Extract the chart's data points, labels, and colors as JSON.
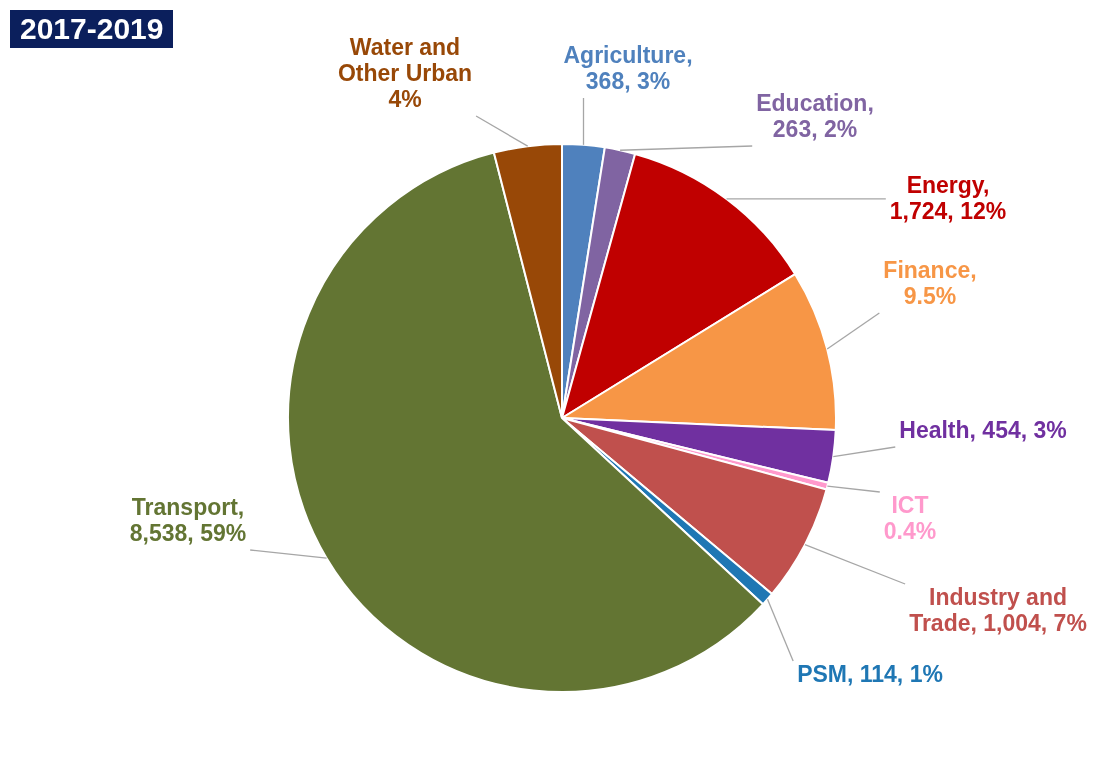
{
  "chart_data": {
    "type": "pie",
    "title": "2017-2019",
    "categories": [
      "Agriculture",
      "Education",
      "Energy",
      "Finance",
      "Health",
      "ICT",
      "Industry and Trade",
      "PSM",
      "Transport",
      "Water and Other Urban"
    ],
    "values": [
      2.5,
      1.8,
      11.9,
      9.5,
      3.1,
      0.4,
      6.9,
      0.8,
      59.1,
      4
    ],
    "value_labels": [
      ", 368, 3%",
      ", 263, 2%",
      ", 1,724, 12%",
      ", 9.5%",
      ", 454, 3%",
      "0.4%",
      ", 1,004, 7%",
      ", 114, 1%",
      ", 8,538, 59%",
      "4%"
    ],
    "colors": [
      "#4f81bd",
      "#8064a2",
      "#c00000",
      "#f79646",
      "#7030a0",
      "#ff99cc",
      "#c0504d",
      "#1f77b4",
      "#637533",
      "#984807"
    ]
  }
}
